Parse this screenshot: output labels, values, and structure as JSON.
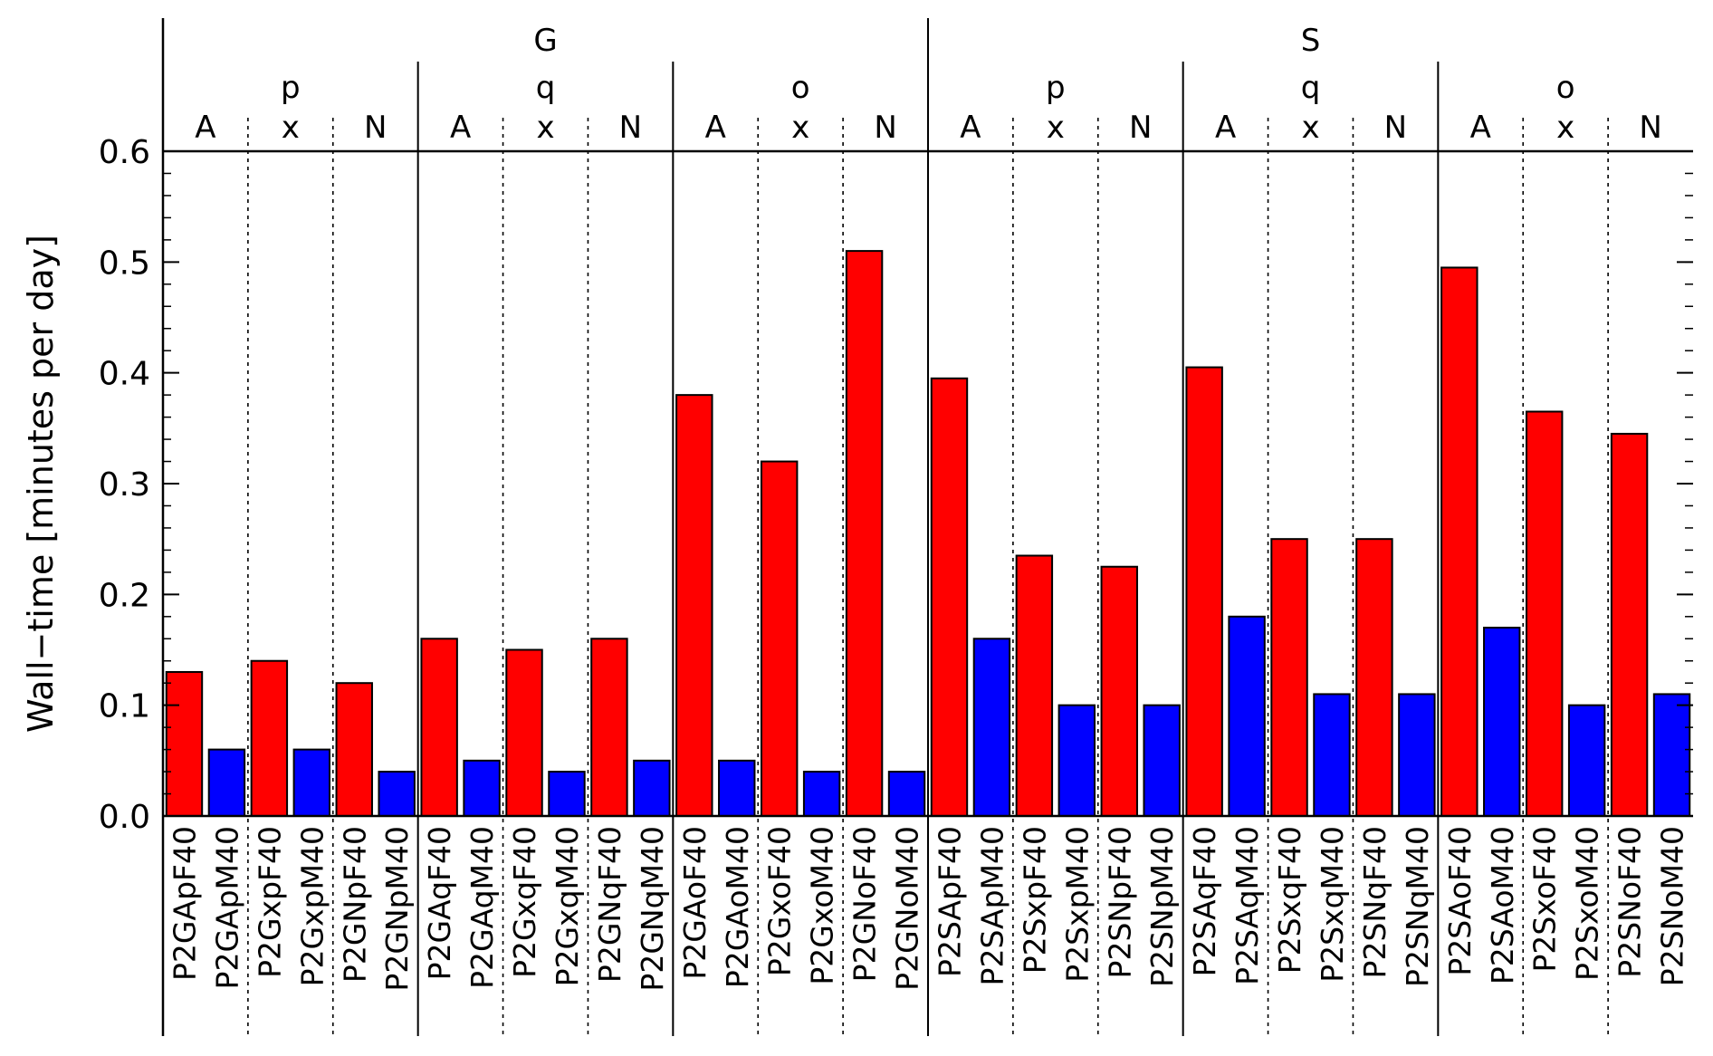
{
  "chart_data": {
    "type": "bar",
    "ylabel": "Wall−time [minutes per day]",
    "ylim": [
      0.0,
      0.6
    ],
    "yticks": [
      "0.0",
      "0.1",
      "0.2",
      "0.3",
      "0.4",
      "0.5",
      "0.6"
    ],
    "grid": false,
    "colors": {
      "F40": "#ff0000",
      "M40": "#0000ff"
    },
    "group_labels": [
      "G",
      "S"
    ],
    "subgroup_labels": [
      "p",
      "q",
      "o",
      "p",
      "q",
      "o"
    ],
    "pair_labels_top": [
      "A",
      "A",
      "A",
      "A",
      "A",
      "A"
    ],
    "pair_labels_mid": [
      "x",
      "x",
      "x",
      "x",
      "x",
      "x"
    ],
    "pair_labels_bottom": [
      "N",
      "N",
      "N",
      "N",
      "N",
      "N"
    ],
    "categories": [
      "P2GApF40",
      "P2GApM40",
      "P2GxpF40",
      "P2GxpM40",
      "P2GNpF40",
      "P2GNpM40",
      "P2GAqF40",
      "P2GAqM40",
      "P2GxqF40",
      "P2GxqM40",
      "P2GNqF40",
      "P2GNqM40",
      "P2GAoF40",
      "P2GAoM40",
      "P2GxoF40",
      "P2GxoM40",
      "P2GNoF40",
      "P2GNoM40",
      "P2SApF40",
      "P2SApM40",
      "P2SxpF40",
      "P2SxpM40",
      "P2SNpF40",
      "P2SNpM40",
      "P2SAqF40",
      "P2SAqM40",
      "P2SxqF40",
      "P2SxqM40",
      "P2SNqF40",
      "P2SNqM40",
      "P2SAoF40",
      "P2SAoM40",
      "P2SxoF40",
      "P2SxoM40",
      "P2SNoF40",
      "P2SNoM40"
    ],
    "values": [
      0.13,
      0.06,
      0.14,
      0.06,
      0.12,
      0.04,
      0.16,
      0.05,
      0.15,
      0.04,
      0.16,
      0.05,
      0.38,
      0.05,
      0.32,
      0.04,
      0.51,
      0.04,
      0.395,
      0.16,
      0.235,
      0.1,
      0.225,
      0.1,
      0.405,
      0.18,
      0.25,
      0.11,
      0.25,
      0.11,
      0.495,
      0.17,
      0.365,
      0.1,
      0.345,
      0.11
    ]
  }
}
